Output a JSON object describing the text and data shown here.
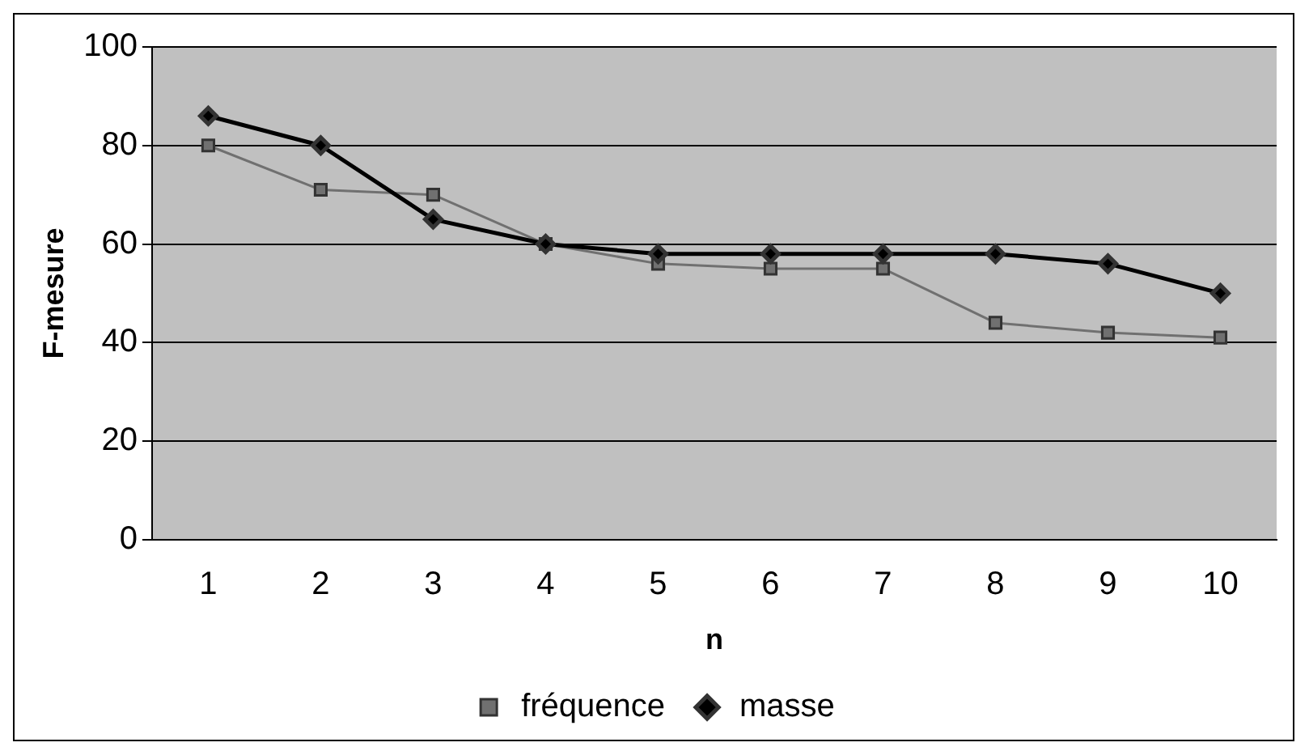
{
  "chart_data": {
    "type": "line",
    "xlabel": "n",
    "ylabel": "F-mesure",
    "categories": [
      "1",
      "2",
      "3",
      "4",
      "5",
      "6",
      "7",
      "8",
      "9",
      "10"
    ],
    "series": [
      {
        "name": "fréquence",
        "color": "#707070",
        "marker": "square",
        "values": [
          80,
          71,
          70,
          60,
          56,
          55,
          55,
          44,
          42,
          41
        ]
      },
      {
        "name": "masse",
        "color": "#000000",
        "marker": "diamond",
        "values": [
          86,
          80,
          65,
          60,
          58,
          58,
          58,
          58,
          56,
          50
        ]
      }
    ],
    "ylim": [
      0,
      100
    ],
    "yticks": [
      0,
      20,
      40,
      60,
      80,
      100
    ],
    "grid": "y",
    "legend": "bottom"
  }
}
